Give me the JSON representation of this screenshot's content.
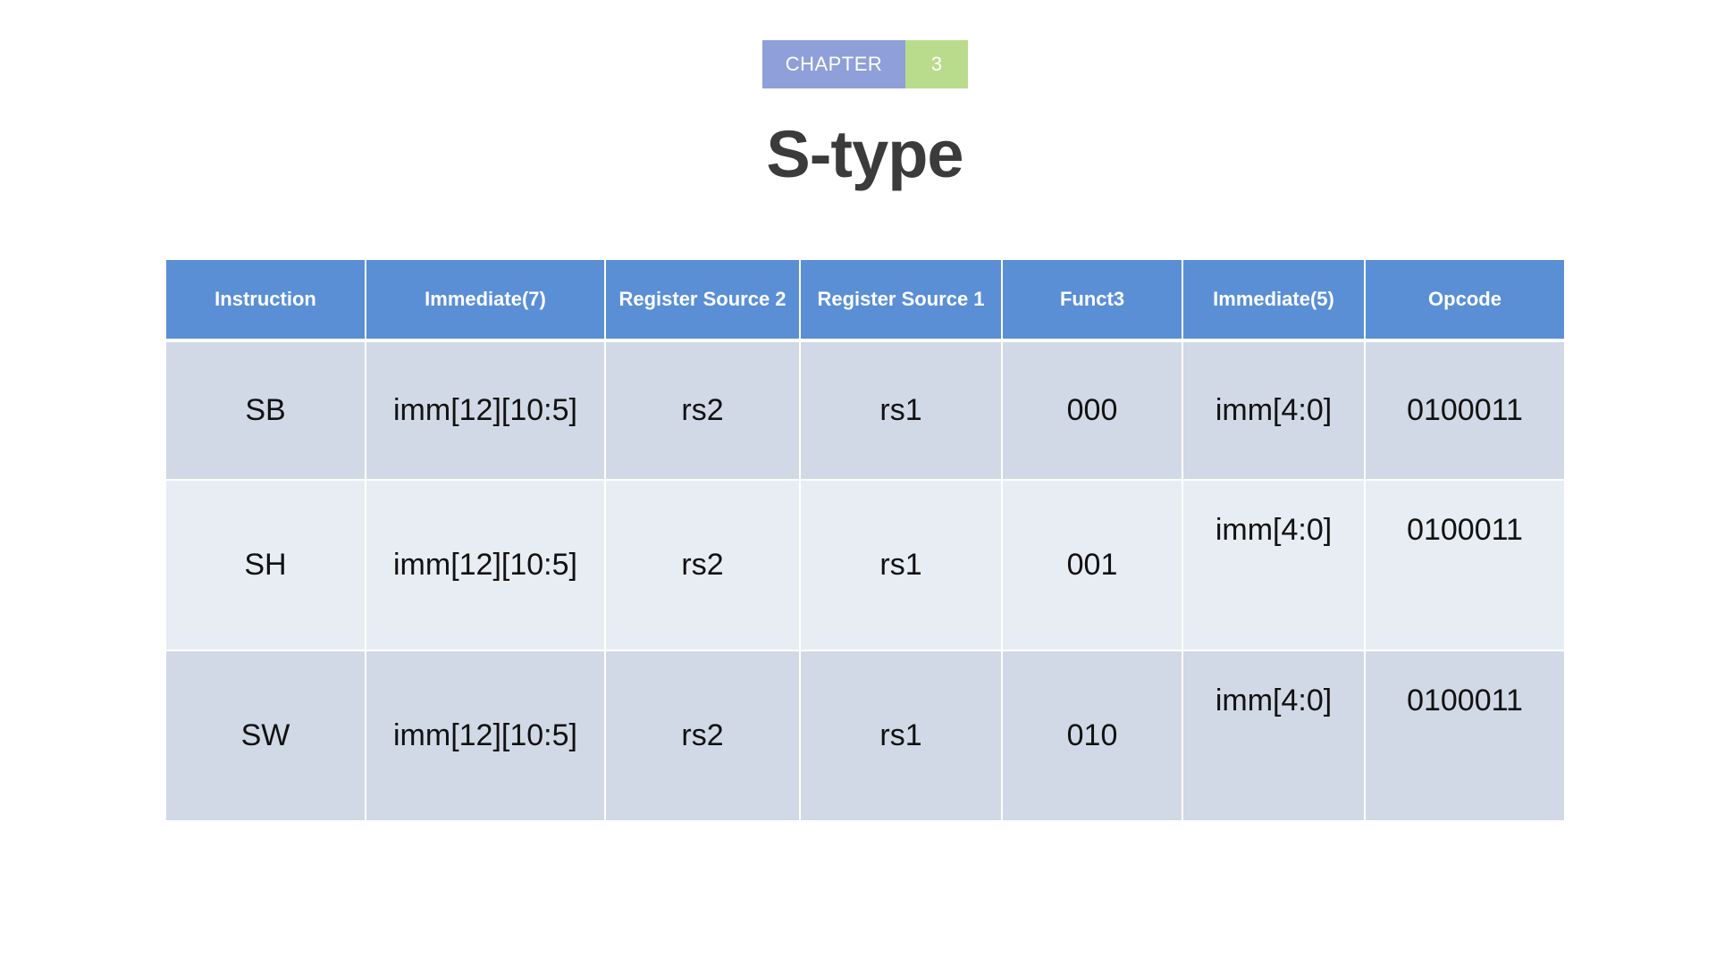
{
  "chapter": {
    "label": "CHAPTER",
    "number": "3"
  },
  "title": "S-type",
  "table": {
    "headers": [
      "Instruction",
      "Immediate(7)",
      "Register Source 2",
      "Register Source 1",
      "Funct3",
      "Immediate(5)",
      "Opcode"
    ],
    "rows": [
      [
        "SB",
        "imm[12][10:5]",
        "rs2",
        "rs1",
        "000",
        "imm[4:0]",
        "0100011"
      ],
      [
        "SH",
        "imm[12][10:5]",
        "rs2",
        "rs1",
        "001",
        "imm[4:0]",
        "0100011"
      ],
      [
        "SW",
        "imm[12][10:5]",
        "rs2",
        "rs1",
        "010",
        "imm[4:0]",
        "0100011"
      ]
    ]
  },
  "colors": {
    "chapter_label_bg": "#8e9fd9",
    "chapter_num_bg": "#b9dc8c",
    "header_bg": "#5a8fd6",
    "row_odd_bg": "#d1d9e7",
    "row_even_bg": "#e8ecf3",
    "title_color": "#3b3b3b"
  }
}
